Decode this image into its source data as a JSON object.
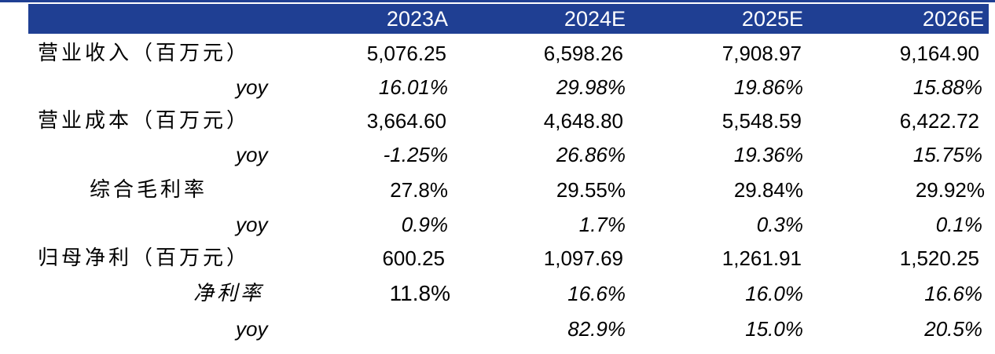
{
  "header": {
    "columns": [
      "2023A",
      "2024E",
      "2025E",
      "2026E"
    ]
  },
  "rows": [
    {
      "label": "营业收入（百万元）",
      "values": [
        "5,076.25",
        "6,598.26",
        "7,908.97",
        "9,164.90"
      ]
    },
    {
      "label": "yoy",
      "values": [
        "16.01%",
        "29.98%",
        "19.86%",
        "15.88%"
      ]
    },
    {
      "label": "营业成本（百万元）",
      "values": [
        "3,664.60",
        "4,648.80",
        "5,548.59",
        "6,422.72"
      ]
    },
    {
      "label": "yoy",
      "values": [
        "-1.25%",
        "26.86%",
        "19.36%",
        "15.75%"
      ]
    },
    {
      "label": "综合毛利率",
      "values": [
        "27.8%",
        "29.55%",
        "29.84%",
        "29.92%"
      ]
    },
    {
      "label": "yoy",
      "values": [
        "0.9%",
        "1.7%",
        "0.3%",
        "0.1%"
      ]
    },
    {
      "label": "归母净利（百万元）",
      "values": [
        "600.25",
        "1,097.69",
        "1,261.91",
        "1,520.25"
      ]
    },
    {
      "label": "净利率",
      "values": [
        "11.8%",
        "16.6%",
        "16.0%",
        "16.6%"
      ]
    },
    {
      "label": "yoy",
      "values": [
        "",
        "82.9%",
        "15.0%",
        "20.5%"
      ]
    }
  ],
  "colors": {
    "header_bg": "#1f3f93",
    "header_text": "#ffffff"
  }
}
